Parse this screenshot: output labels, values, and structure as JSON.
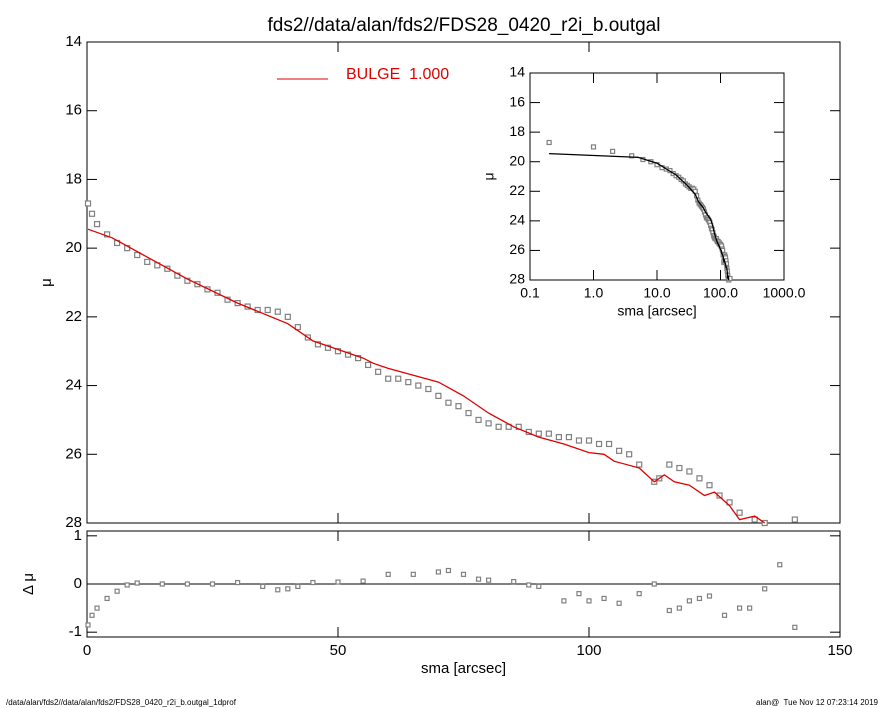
{
  "chart_data": [
    {
      "type": "scatter",
      "title": "fds2//data/alan/fds2/FDS28_0420_r2i_b.outgal",
      "ylabel": "μ",
      "xlim": [
        0,
        150
      ],
      "ylim": [
        14,
        28
      ],
      "y_inverted": true,
      "xticks": [
        0,
        50,
        100,
        150
      ],
      "yticks": [
        14,
        16,
        18,
        20,
        22,
        24,
        26,
        28
      ],
      "series": [
        {
          "type": "points",
          "color": "#808080",
          "x": [
            0.2,
            1,
            2,
            4,
            6,
            8,
            10,
            12,
            14,
            16,
            18,
            20,
            22,
            24,
            26,
            28,
            30,
            32,
            34,
            36,
            38,
            40,
            42,
            44,
            46,
            48,
            50,
            52,
            54,
            56,
            58,
            60,
            62,
            64,
            66,
            68,
            70,
            72,
            74,
            76,
            78,
            80,
            82,
            84,
            86,
            88,
            90,
            92,
            94,
            96,
            98,
            100,
            102,
            104,
            106,
            108,
            110,
            113,
            114,
            116,
            118,
            120,
            122,
            124,
            126,
            128,
            130,
            133,
            135,
            141
          ],
          "values": [
            18.7,
            19.0,
            19.3,
            19.6,
            19.85,
            20.0,
            20.2,
            20.4,
            20.5,
            20.6,
            20.8,
            20.95,
            21.05,
            21.2,
            21.3,
            21.5,
            21.6,
            21.7,
            21.8,
            21.8,
            21.85,
            22.0,
            22.3,
            22.6,
            22.8,
            22.9,
            23.0,
            23.1,
            23.2,
            23.4,
            23.6,
            23.8,
            23.8,
            23.9,
            24.0,
            24.1,
            24.3,
            24.5,
            24.6,
            24.8,
            25.0,
            25.1,
            25.2,
            25.2,
            25.2,
            25.35,
            25.4,
            25.4,
            25.5,
            25.5,
            25.6,
            25.6,
            25.7,
            25.7,
            25.9,
            26.0,
            26.3,
            26.8,
            26.7,
            26.3,
            26.4,
            26.5,
            26.7,
            26.9,
            27.2,
            27.4,
            27.7,
            27.9,
            28.0,
            27.9
          ]
        },
        {
          "type": "line",
          "name": "BULGE  1.000",
          "color": "#e00000",
          "x": [
            0.2,
            5,
            10,
            20,
            30,
            40,
            45,
            50,
            55,
            57,
            60,
            65,
            70,
            75,
            80,
            85,
            90,
            95,
            100,
            103,
            105,
            110,
            113,
            115,
            117,
            120,
            123,
            125,
            128,
            130,
            133,
            135
          ],
          "values": [
            19.45,
            19.7,
            20.1,
            20.9,
            21.6,
            22.2,
            22.7,
            22.95,
            23.2,
            23.35,
            23.5,
            23.7,
            23.9,
            24.3,
            24.8,
            25.2,
            25.5,
            25.7,
            25.95,
            26.0,
            26.2,
            26.4,
            26.8,
            26.6,
            26.8,
            26.9,
            27.2,
            27.1,
            27.5,
            27.9,
            27.8,
            28.0
          ]
        }
      ]
    },
    {
      "type": "scatter",
      "xlabel": "sma [arcsec]",
      "ylabel": "Δ μ",
      "xlim": [
        0,
        150
      ],
      "ylim": [
        -1.1,
        1.1
      ],
      "xticks": [
        0,
        50,
        100,
        150
      ],
      "yticks": [
        -1,
        0,
        1
      ],
      "series": [
        {
          "type": "points",
          "color": "#808080",
          "x": [
            0.2,
            1,
            2,
            4,
            6,
            8,
            10,
            15,
            20,
            25,
            30,
            35,
            38,
            40,
            42,
            45,
            50,
            55,
            60,
            65,
            70,
            72,
            75,
            78,
            80,
            85,
            88,
            90,
            95,
            98,
            100,
            103,
            106,
            110,
            113,
            116,
            118,
            120,
            122,
            124,
            127,
            130,
            132,
            135,
            138,
            141
          ],
          "values": [
            -0.85,
            -0.65,
            -0.5,
            -0.3,
            -0.15,
            -0.02,
            0.02,
            0,
            0,
            0,
            0.03,
            -0.05,
            -0.12,
            -0.1,
            -0.05,
            0.03,
            0.04,
            0.06,
            0.2,
            0.2,
            0.25,
            0.28,
            0.2,
            0.1,
            0.08,
            0.05,
            -0.02,
            -0.05,
            -0.35,
            -0.2,
            -0.35,
            -0.3,
            -0.4,
            -0.2,
            0.0,
            -0.55,
            -0.5,
            -0.35,
            -0.3,
            -0.25,
            -0.65,
            -0.5,
            -0.5,
            -0.1,
            0.4,
            -0.9
          ]
        }
      ]
    },
    {
      "type": "inset",
      "xlabel": "sma [arcsec]",
      "ylabel": "μ",
      "xlog": true,
      "model_color": "#000000",
      "xlim": [
        0.1,
        1000
      ],
      "ylim": [
        14,
        28
      ],
      "y_inverted": true,
      "xticks": [
        {
          "value": 0.1,
          "label": "0.1"
        },
        {
          "value": 1,
          "label": "1.0"
        },
        {
          "value": 10,
          "label": "10.0"
        },
        {
          "value": 100,
          "label": "100.0"
        },
        {
          "value": 1000,
          "label": "1000.0"
        }
      ],
      "yticks": [
        14,
        16,
        18,
        20,
        22,
        24,
        26,
        28
      ]
    }
  ],
  "footer": {
    "left": "/data/alan/fds2//data/alan/fds2/FDS28_0420_r2i_b.outgal_1dprof",
    "right": "alan@  Tue Nov 12 07:23:14 2019"
  }
}
